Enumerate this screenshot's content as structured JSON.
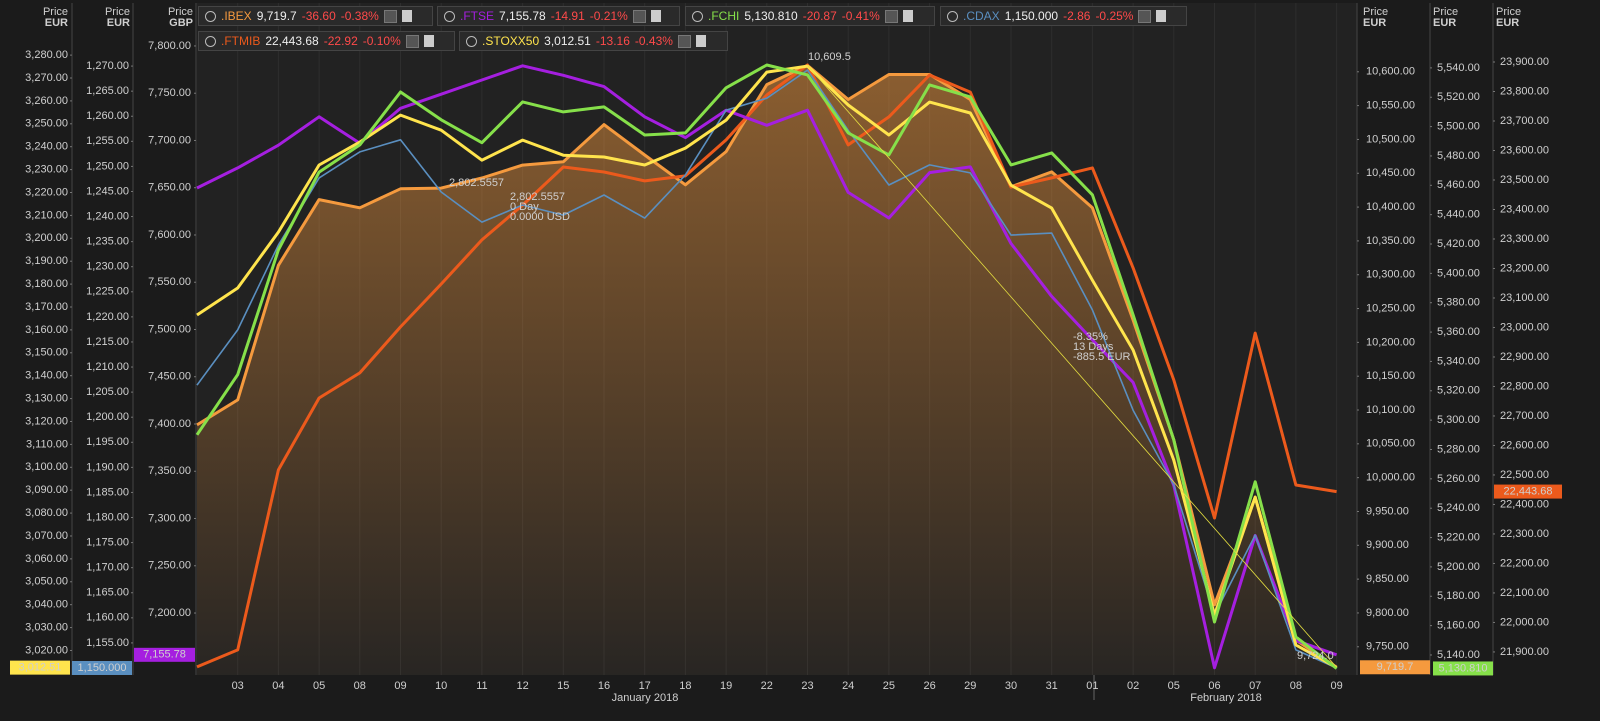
{
  "chart_data": {
    "type": "line",
    "categories": [
      null,
      "03",
      "04",
      "05",
      "08",
      "09",
      "10",
      "11",
      "12",
      "15",
      "16",
      "17",
      "18",
      "19",
      "22",
      "23",
      "24",
      "25",
      "26",
      "29",
      "30",
      "31",
      "01",
      "02",
      "05",
      "06",
      "07",
      "08",
      "09"
    ],
    "month_labels": [
      "January 2018",
      "February 2018"
    ],
    "annotations": [
      "10,609.5",
      "2,802.5557",
      "2,802.5557",
      "0 Day",
      "0.0000 USD",
      "-8.35%",
      "13 Days",
      "-885.5 EUR",
      "9,724.0"
    ],
    "series": [
      {
        "name": ".IBEX",
        "color": "#f59a3e",
        "fill": true,
        "value_label": "9,719.7",
        "change": "-36.60",
        "change_pct": "-0.38%",
        "axis_title": "Price",
        "axis_unit": "EUR",
        "values": [
          10078,
          10115,
          10314,
          10411,
          10399,
          10427,
          10428,
          10443,
          10462,
          10467,
          10522,
          10477,
          10433,
          10482,
          10581,
          10609.5,
          10559,
          10596,
          10596,
          10559,
          10430,
          10452,
          10399,
          10233,
          10056,
          9812,
          9971,
          9760,
          9719.7
        ],
        "ylim": [
          9712.7,
          10647
        ],
        "yticks": [
          {
            "value": 9750,
            "label": "9,750.00"
          },
          {
            "value": 9800,
            "label": "9,800.00"
          },
          {
            "value": 9850,
            "label": "9,850.00"
          },
          {
            "value": 9900,
            "label": "9,900.00"
          },
          {
            "value": 9950,
            "label": "9,950.00"
          },
          {
            "value": 10000,
            "label": "10,000.00"
          },
          {
            "value": 10050,
            "label": "10,050.00"
          },
          {
            "value": 10100,
            "label": "10,100.00"
          },
          {
            "value": 10150,
            "label": "10,150.00"
          },
          {
            "value": 10200,
            "label": "10,200.00"
          },
          {
            "value": 10250,
            "label": "10,250.00"
          },
          {
            "value": 10300,
            "label": "10,300.00"
          },
          {
            "value": 10350,
            "label": "10,350.00"
          },
          {
            "value": 10400,
            "label": "10,400.00"
          },
          {
            "value": 10450,
            "label": "10,450.00"
          },
          {
            "value": 10500,
            "label": "10,500.00"
          },
          {
            "value": 10550,
            "label": "10,550.00"
          },
          {
            "value": 10600,
            "label": "10,600.00"
          }
        ]
      },
      {
        "name": ".FTSE",
        "color": "#a51fe0",
        "value_label": "7,155.78",
        "change": "-14.91",
        "change_pct": "-0.21%",
        "axis_title": "Price",
        "axis_unit": "GBP",
        "values": [
          7649.7,
          7671,
          7695,
          7725,
          7697,
          7734,
          7749,
          7764,
          7779,
          7769,
          7757,
          7725,
          7703,
          7732,
          7716,
          7732,
          7645,
          7618,
          7666,
          7672,
          7591,
          7535,
          7489,
          7444,
          7335,
          7142,
          7282,
          7171,
          7155.78
        ],
        "ylim": [
          7137.6,
          7806.3
        ],
        "yticks": [
          {
            "value": 7200,
            "label": "7,200.00"
          },
          {
            "value": 7250,
            "label": "7,250.00"
          },
          {
            "value": 7300,
            "label": "7,300.00"
          },
          {
            "value": 7350,
            "label": "7,350.00"
          },
          {
            "value": 7400,
            "label": "7,400.00"
          },
          {
            "value": 7450,
            "label": "7,450.00"
          },
          {
            "value": 7500,
            "label": "7,500.00"
          },
          {
            "value": 7550,
            "label": "7,550.00"
          },
          {
            "value": 7600,
            "label": "7,600.00"
          },
          {
            "value": 7650,
            "label": "7,650.00"
          },
          {
            "value": 7700,
            "label": "7,700.00"
          },
          {
            "value": 7750,
            "label": "7,750.00"
          },
          {
            "value": 7800,
            "label": "7,800.00"
          }
        ]
      },
      {
        "name": ".FCHI",
        "color": "#86e04a",
        "value_label": "5,130.810",
        "change": "-20.87",
        "change_pct": "-0.41%",
        "axis_title": "Price",
        "axis_unit": "EUR",
        "values": [
          5290,
          5331,
          5416,
          5469,
          5487.5,
          5523.6,
          5504.6,
          5489,
          5516.8,
          5510,
          5513.4,
          5494.3,
          5495.7,
          5526.4,
          5542,
          5535.2,
          5495.7,
          5480.7,
          5528.4,
          5520.2,
          5473.9,
          5482.1,
          5453.5,
          5371.7,
          5286.5,
          5162.5,
          5258,
          5152.3,
          5130.81
        ],
        "ylim": [
          5128.4,
          5559
        ],
        "yticks": [
          {
            "value": 5140,
            "label": "5,140.00"
          },
          {
            "value": 5160,
            "label": "5,160.00"
          },
          {
            "value": 5180,
            "label": "5,180.00"
          },
          {
            "value": 5200,
            "label": "5,200.00"
          },
          {
            "value": 5220,
            "label": "5,220.00"
          },
          {
            "value": 5240,
            "label": "5,240.00"
          },
          {
            "value": 5260,
            "label": "5,260.00"
          },
          {
            "value": 5280,
            "label": "5,280.00"
          },
          {
            "value": 5300,
            "label": "5,300.00"
          },
          {
            "value": 5320,
            "label": "5,320.00"
          },
          {
            "value": 5340,
            "label": "5,340.00"
          },
          {
            "value": 5360,
            "label": "5,360.00"
          },
          {
            "value": 5380,
            "label": "5,380.00"
          },
          {
            "value": 5400,
            "label": "5,400.00"
          },
          {
            "value": 5420,
            "label": "5,420.00"
          },
          {
            "value": 5440,
            "label": "5,440.00"
          },
          {
            "value": 5460,
            "label": "5,460.00"
          },
          {
            "value": 5480,
            "label": "5,480.00"
          },
          {
            "value": 5500,
            "label": "5,500.00"
          },
          {
            "value": 5520,
            "label": "5,520.00"
          },
          {
            "value": 5540,
            "label": "5,540.00"
          }
        ]
      },
      {
        "name": ".CDAX",
        "color": "#5a8fc0",
        "value_label": "1,150.000",
        "change": "-2.86",
        "change_pct": "-0.25%",
        "axis_title": "Price",
        "axis_unit": "EUR",
        "values": [
          1206.4,
          1217.4,
          1234.3,
          1247.7,
          1252.9,
          1255.3,
          1244.9,
          1238.9,
          1242.3,
          1240.3,
          1244.3,
          1239.7,
          1248.3,
          1261.2,
          1263.6,
          1269.2,
          1257.2,
          1246.3,
          1250.3,
          1248.7,
          1236.3,
          1236.7,
          1221.4,
          1201.4,
          1186.5,
          1160.6,
          1176.5,
          1153.6,
          1150
        ],
        "ylim": [
          1149.2,
          1275.2
        ],
        "yticks": [
          {
            "value": 1155,
            "label": "1,155.00"
          },
          {
            "value": 1160,
            "label": "1,160.00"
          },
          {
            "value": 1165,
            "label": "1,165.00"
          },
          {
            "value": 1170,
            "label": "1,170.00"
          },
          {
            "value": 1175,
            "label": "1,175.00"
          },
          {
            "value": 1180,
            "label": "1,180.00"
          },
          {
            "value": 1185,
            "label": "1,185.00"
          },
          {
            "value": 1190,
            "label": "1,190.00"
          },
          {
            "value": 1195,
            "label": "1,195.00"
          },
          {
            "value": 1200,
            "label": "1,200.00"
          },
          {
            "value": 1205,
            "label": "1,205.00"
          },
          {
            "value": 1210,
            "label": "1,210.00"
          },
          {
            "value": 1215,
            "label": "1,215.00"
          },
          {
            "value": 1220,
            "label": "1,220.00"
          },
          {
            "value": 1225,
            "label": "1,225.00"
          },
          {
            "value": 1230,
            "label": "1,230.00"
          },
          {
            "value": 1235,
            "label": "1,235.00"
          },
          {
            "value": 1240,
            "label": "1,240.00"
          },
          {
            "value": 1245,
            "label": "1,245.00"
          },
          {
            "value": 1250,
            "label": "1,250.00"
          },
          {
            "value": 1255,
            "label": "1,255.00"
          },
          {
            "value": 1260,
            "label": "1,260.00"
          },
          {
            "value": 1265,
            "label": "1,265.00"
          },
          {
            "value": 1270,
            "label": "1,270.00"
          }
        ]
      },
      {
        "name": ".FTMIB",
        "color": "#ec5a1c",
        "value_label": "22,443.68",
        "change": "-22.92",
        "change_pct": "-0.10%",
        "axis_title": "Price",
        "axis_unit": "EUR",
        "values": [
          21849.2,
          21907,
          22517,
          22761,
          22846,
          23002,
          23147.5,
          23297,
          23415,
          23544,
          23527,
          23497,
          23514,
          23636,
          23788,
          23890,
          23619,
          23714,
          23856,
          23798,
          23476,
          23507,
          23541,
          23202,
          22822,
          22354,
          22981,
          22466,
          22443.68
        ],
        "ylim": [
          21832,
          23974.6
        ],
        "yticks": [
          {
            "value": 21900,
            "label": "21,900.00"
          },
          {
            "value": 22000,
            "label": "22,000.00"
          },
          {
            "value": 22100,
            "label": "22,100.00"
          },
          {
            "value": 22200,
            "label": "22,200.00"
          },
          {
            "value": 22300,
            "label": "22,300.00"
          },
          {
            "value": 22400,
            "label": "22,400.00"
          },
          {
            "value": 22500,
            "label": "22,500.00"
          },
          {
            "value": 22600,
            "label": "22,600.00"
          },
          {
            "value": 22700,
            "label": "22,700.00"
          },
          {
            "value": 22800,
            "label": "22,800.00"
          },
          {
            "value": 22900,
            "label": "22,900.00"
          },
          {
            "value": 23000,
            "label": "23,000.00"
          },
          {
            "value": 23100,
            "label": "23,100.00"
          },
          {
            "value": 23200,
            "label": "23,200.00"
          },
          {
            "value": 23300,
            "label": "23,300.00"
          },
          {
            "value": 23400,
            "label": "23,400.00"
          },
          {
            "value": 23500,
            "label": "23,500.00"
          },
          {
            "value": 23600,
            "label": "23,600.00"
          },
          {
            "value": 23700,
            "label": "23,700.00"
          },
          {
            "value": 23800,
            "label": "23,800.00"
          },
          {
            "value": 23900,
            "label": "23,900.00"
          }
        ]
      },
      {
        "name": ".STOXX50",
        "color": "#ffe44d",
        "value_label": "3,012.51",
        "change": "-13.16",
        "change_pct": "-0.43%",
        "axis_title": "Price",
        "axis_unit": "EUR",
        "values": [
          3166.5,
          3178.3,
          3202.7,
          3232,
          3242,
          3253.8,
          3247.2,
          3234.1,
          3242.9,
          3236.3,
          3235.5,
          3232,
          3239.4,
          3251.6,
          3272.6,
          3275.2,
          3258.2,
          3245.1,
          3259.5,
          3254.7,
          3223.2,
          3213.2,
          3181.7,
          3151.2,
          3103.1,
          3035.5,
          3087,
          3022.4,
          3012.51
        ],
        "ylim": [
          3010.6,
          3286.6
        ],
        "yticks": [
          {
            "value": 3020,
            "label": "3,020.00"
          },
          {
            "value": 3030,
            "label": "3,030.00"
          },
          {
            "value": 3040,
            "label": "3,040.00"
          },
          {
            "value": 3050,
            "label": "3,050.00"
          },
          {
            "value": 3060,
            "label": "3,060.00"
          },
          {
            "value": 3070,
            "label": "3,070.00"
          },
          {
            "value": 3080,
            "label": "3,080.00"
          },
          {
            "value": 3090,
            "label": "3,090.00"
          },
          {
            "value": 3100,
            "label": "3,100.00"
          },
          {
            "value": 3110,
            "label": "3,110.00"
          },
          {
            "value": 3120,
            "label": "3,120.00"
          },
          {
            "value": 3130,
            "label": "3,130.00"
          },
          {
            "value": 3140,
            "label": "3,140.00"
          },
          {
            "value": 3150,
            "label": "3,150.00"
          },
          {
            "value": 3160,
            "label": "3,160.00"
          },
          {
            "value": 3170,
            "label": "3,170.00"
          },
          {
            "value": 3180,
            "label": "3,180.00"
          },
          {
            "value": 3190,
            "label": "3,190.00"
          },
          {
            "value": 3200,
            "label": "3,200.00"
          },
          {
            "value": 3210,
            "label": "3,210.00"
          },
          {
            "value": 3220,
            "label": "3,220.00"
          },
          {
            "value": 3230,
            "label": "3,230.00"
          },
          {
            "value": 3240,
            "label": "3,240.00"
          },
          {
            "value": 3250,
            "label": "3,250.00"
          },
          {
            "value": 3260,
            "label": "3,260.00"
          },
          {
            "value": 3270,
            "label": "3,270.00"
          },
          {
            "value": 3280,
            "label": "3,280.00"
          }
        ]
      }
    ]
  }
}
